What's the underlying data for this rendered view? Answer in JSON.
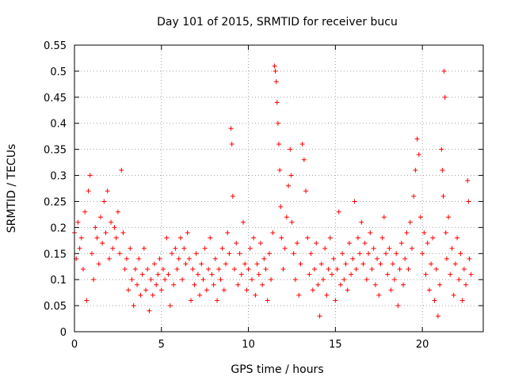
{
  "chart_data": {
    "type": "scatter",
    "title": "Day 101 of 2015, SRMTID for receiver bucu",
    "xlabel": "GPS time / hours",
    "ylabel": "SRMTID / TECUs",
    "xlim": [
      0,
      23.5
    ],
    "ylim": [
      0,
      0.55
    ],
    "x_ticks": [
      0,
      5,
      10,
      15,
      20
    ],
    "y_ticks": [
      0,
      0.05,
      0.1,
      0.15,
      0.2,
      0.25,
      0.3,
      0.35,
      0.4,
      0.45,
      0.5,
      0.55
    ],
    "grid": true,
    "marker": "+",
    "color": "#ff0000",
    "series": [
      {
        "name": "SRMTID",
        "points": [
          [
            0.0,
            0.19
          ],
          [
            0.1,
            0.14
          ],
          [
            0.2,
            0.21
          ],
          [
            0.3,
            0.16
          ],
          [
            0.4,
            0.18
          ],
          [
            0.5,
            0.12
          ],
          [
            0.6,
            0.23
          ],
          [
            0.7,
            0.06
          ],
          [
            0.8,
            0.27
          ],
          [
            0.9,
            0.3
          ],
          [
            1.0,
            0.15
          ],
          [
            1.1,
            0.1
          ],
          [
            1.2,
            0.2
          ],
          [
            1.3,
            0.18
          ],
          [
            1.4,
            0.13
          ],
          [
            1.5,
            0.22
          ],
          [
            1.6,
            0.17
          ],
          [
            1.7,
            0.25
          ],
          [
            1.8,
            0.19
          ],
          [
            1.9,
            0.27
          ],
          [
            2.0,
            0.14
          ],
          [
            2.1,
            0.21
          ],
          [
            2.2,
            0.16
          ],
          [
            2.3,
            0.2
          ],
          [
            2.4,
            0.18
          ],
          [
            2.5,
            0.23
          ],
          [
            2.6,
            0.15
          ],
          [
            2.7,
            0.31
          ],
          [
            2.8,
            0.19
          ],
          [
            2.9,
            0.12
          ],
          [
            3.0,
            0.14
          ],
          [
            3.1,
            0.08
          ],
          [
            3.2,
            0.16
          ],
          [
            3.3,
            0.1
          ],
          [
            3.4,
            0.05
          ],
          [
            3.5,
            0.12
          ],
          [
            3.6,
            0.09
          ],
          [
            3.7,
            0.14
          ],
          [
            3.8,
            0.07
          ],
          [
            3.9,
            0.11
          ],
          [
            4.0,
            0.16
          ],
          [
            4.1,
            0.08
          ],
          [
            4.2,
            0.12
          ],
          [
            4.3,
            0.04
          ],
          [
            4.4,
            0.1
          ],
          [
            4.5,
            0.07
          ],
          [
            4.6,
            0.13
          ],
          [
            4.7,
            0.09
          ],
          [
            4.8,
            0.11
          ],
          [
            4.9,
            0.14
          ],
          [
            5.0,
            0.08
          ],
          [
            5.1,
            0.12
          ],
          [
            5.2,
            0.1
          ],
          [
            5.3,
            0.18
          ],
          [
            5.4,
            0.11
          ],
          [
            5.5,
            0.05
          ],
          [
            5.6,
            0.15
          ],
          [
            5.7,
            0.09
          ],
          [
            5.8,
            0.16
          ],
          [
            5.9,
            0.12
          ],
          [
            6.0,
            0.14
          ],
          [
            6.1,
            0.18
          ],
          [
            6.2,
            0.1
          ],
          [
            6.3,
            0.16
          ],
          [
            6.4,
            0.13
          ],
          [
            6.5,
            0.19
          ],
          [
            6.6,
            0.14
          ],
          [
            6.7,
            0.06
          ],
          [
            6.8,
            0.12
          ],
          [
            6.9,
            0.09
          ],
          [
            7.0,
            0.15
          ],
          [
            7.1,
            0.11
          ],
          [
            7.2,
            0.07
          ],
          [
            7.3,
            0.13
          ],
          [
            7.4,
            0.1
          ],
          [
            7.5,
            0.16
          ],
          [
            7.6,
            0.08
          ],
          [
            7.7,
            0.12
          ],
          [
            7.8,
            0.18
          ],
          [
            7.9,
            0.11
          ],
          [
            8.0,
            0.09
          ],
          [
            8.1,
            0.14
          ],
          [
            8.2,
            0.06
          ],
          [
            8.3,
            0.12
          ],
          [
            8.4,
            0.1
          ],
          [
            8.5,
            0.16
          ],
          [
            8.6,
            0.08
          ],
          [
            8.7,
            0.13
          ],
          [
            8.8,
            0.19
          ],
          [
            8.9,
            0.15
          ],
          [
            9.0,
            0.39
          ],
          [
            9.05,
            0.36
          ],
          [
            9.1,
            0.26
          ],
          [
            9.2,
            0.12
          ],
          [
            9.3,
            0.17
          ],
          [
            9.4,
            0.09
          ],
          [
            9.5,
            0.15
          ],
          [
            9.6,
            0.11
          ],
          [
            9.7,
            0.21
          ],
          [
            9.8,
            0.13
          ],
          [
            9.9,
            0.08
          ],
          [
            10.0,
            0.12
          ],
          [
            10.1,
            0.16
          ],
          [
            10.2,
            0.1
          ],
          [
            10.3,
            0.18
          ],
          [
            10.4,
            0.07
          ],
          [
            10.5,
            0.13
          ],
          [
            10.6,
            0.11
          ],
          [
            10.7,
            0.17
          ],
          [
            10.8,
            0.09
          ],
          [
            10.9,
            0.14
          ],
          [
            11.0,
            0.12
          ],
          [
            11.1,
            0.06
          ],
          [
            11.2,
            0.15
          ],
          [
            11.3,
            0.1
          ],
          [
            11.4,
            0.19
          ],
          [
            11.5,
            0.51
          ],
          [
            11.55,
            0.5
          ],
          [
            11.6,
            0.48
          ],
          [
            11.65,
            0.44
          ],
          [
            11.7,
            0.4
          ],
          [
            11.75,
            0.36
          ],
          [
            11.8,
            0.31
          ],
          [
            11.85,
            0.24
          ],
          [
            11.9,
            0.18
          ],
          [
            12.0,
            0.12
          ],
          [
            12.1,
            0.16
          ],
          [
            12.2,
            0.22
          ],
          [
            12.3,
            0.28
          ],
          [
            12.4,
            0.35
          ],
          [
            12.45,
            0.3
          ],
          [
            12.5,
            0.21
          ],
          [
            12.6,
            0.15
          ],
          [
            12.7,
            0.1
          ],
          [
            12.8,
            0.17
          ],
          [
            12.9,
            0.07
          ],
          [
            13.0,
            0.13
          ],
          [
            13.1,
            0.36
          ],
          [
            13.2,
            0.33
          ],
          [
            13.3,
            0.27
          ],
          [
            13.4,
            0.18
          ],
          [
            13.5,
            0.11
          ],
          [
            13.6,
            0.15
          ],
          [
            13.7,
            0.08
          ],
          [
            13.8,
            0.12
          ],
          [
            13.9,
            0.17
          ],
          [
            14.0,
            0.09
          ],
          [
            14.1,
            0.03
          ],
          [
            14.2,
            0.13
          ],
          [
            14.3,
            0.1
          ],
          [
            14.4,
            0.16
          ],
          [
            14.5,
            0.07
          ],
          [
            14.6,
            0.12
          ],
          [
            14.7,
            0.18
          ],
          [
            14.8,
            0.11
          ],
          [
            14.9,
            0.14
          ],
          [
            15.0,
            0.06
          ],
          [
            15.1,
            0.12
          ],
          [
            15.2,
            0.23
          ],
          [
            15.3,
            0.09
          ],
          [
            15.4,
            0.15
          ],
          [
            15.5,
            0.1
          ],
          [
            15.6,
            0.13
          ],
          [
            15.7,
            0.08
          ],
          [
            15.8,
            0.17
          ],
          [
            15.9,
            0.11
          ],
          [
            16.0,
            0.14
          ],
          [
            16.1,
            0.25
          ],
          [
            16.2,
            0.12
          ],
          [
            16.3,
            0.18
          ],
          [
            16.4,
            0.15
          ],
          [
            16.5,
            0.21
          ],
          [
            16.6,
            0.13
          ],
          [
            16.7,
            0.17
          ],
          [
            16.8,
            0.1
          ],
          [
            16.9,
            0.15
          ],
          [
            17.0,
            0.19
          ],
          [
            17.1,
            0.12
          ],
          [
            17.2,
            0.16
          ],
          [
            17.3,
            0.09
          ],
          [
            17.4,
            0.14
          ],
          [
            17.5,
            0.07
          ],
          [
            17.6,
            0.13
          ],
          [
            17.7,
            0.18
          ],
          [
            17.8,
            0.22
          ],
          [
            17.9,
            0.15
          ],
          [
            18.0,
            0.11
          ],
          [
            18.1,
            0.16
          ],
          [
            18.2,
            0.08
          ],
          [
            18.3,
            0.13
          ],
          [
            18.4,
            0.1
          ],
          [
            18.5,
            0.15
          ],
          [
            18.6,
            0.05
          ],
          [
            18.7,
            0.12
          ],
          [
            18.8,
            0.17
          ],
          [
            18.9,
            0.09
          ],
          [
            19.0,
            0.14
          ],
          [
            19.1,
            0.19
          ],
          [
            19.2,
            0.12
          ],
          [
            19.3,
            0.21
          ],
          [
            19.4,
            0.16
          ],
          [
            19.5,
            0.26
          ],
          [
            19.6,
            0.31
          ],
          [
            19.7,
            0.37
          ],
          [
            19.8,
            0.34
          ],
          [
            19.9,
            0.22
          ],
          [
            20.0,
            0.15
          ],
          [
            20.1,
            0.19
          ],
          [
            20.2,
            0.11
          ],
          [
            20.3,
            0.17
          ],
          [
            20.4,
            0.08
          ],
          [
            20.5,
            0.13
          ],
          [
            20.6,
            0.18
          ],
          [
            20.7,
            0.06
          ],
          [
            20.8,
            0.12
          ],
          [
            20.9,
            0.03
          ],
          [
            21.0,
            0.09
          ],
          [
            21.1,
            0.35
          ],
          [
            21.15,
            0.31
          ],
          [
            21.2,
            0.26
          ],
          [
            21.25,
            0.5
          ],
          [
            21.3,
            0.45
          ],
          [
            21.35,
            0.19
          ],
          [
            21.4,
            0.14
          ],
          [
            21.5,
            0.22
          ],
          [
            21.6,
            0.11
          ],
          [
            21.7,
            0.16
          ],
          [
            21.8,
            0.07
          ],
          [
            21.9,
            0.13
          ],
          [
            22.0,
            0.18
          ],
          [
            22.1,
            0.1
          ],
          [
            22.2,
            0.15
          ],
          [
            22.3,
            0.06
          ],
          [
            22.4,
            0.12
          ],
          [
            22.5,
            0.09
          ],
          [
            22.6,
            0.29
          ],
          [
            22.65,
            0.25
          ],
          [
            22.7,
            0.14
          ],
          [
            22.8,
            0.11
          ]
        ]
      }
    ]
  }
}
